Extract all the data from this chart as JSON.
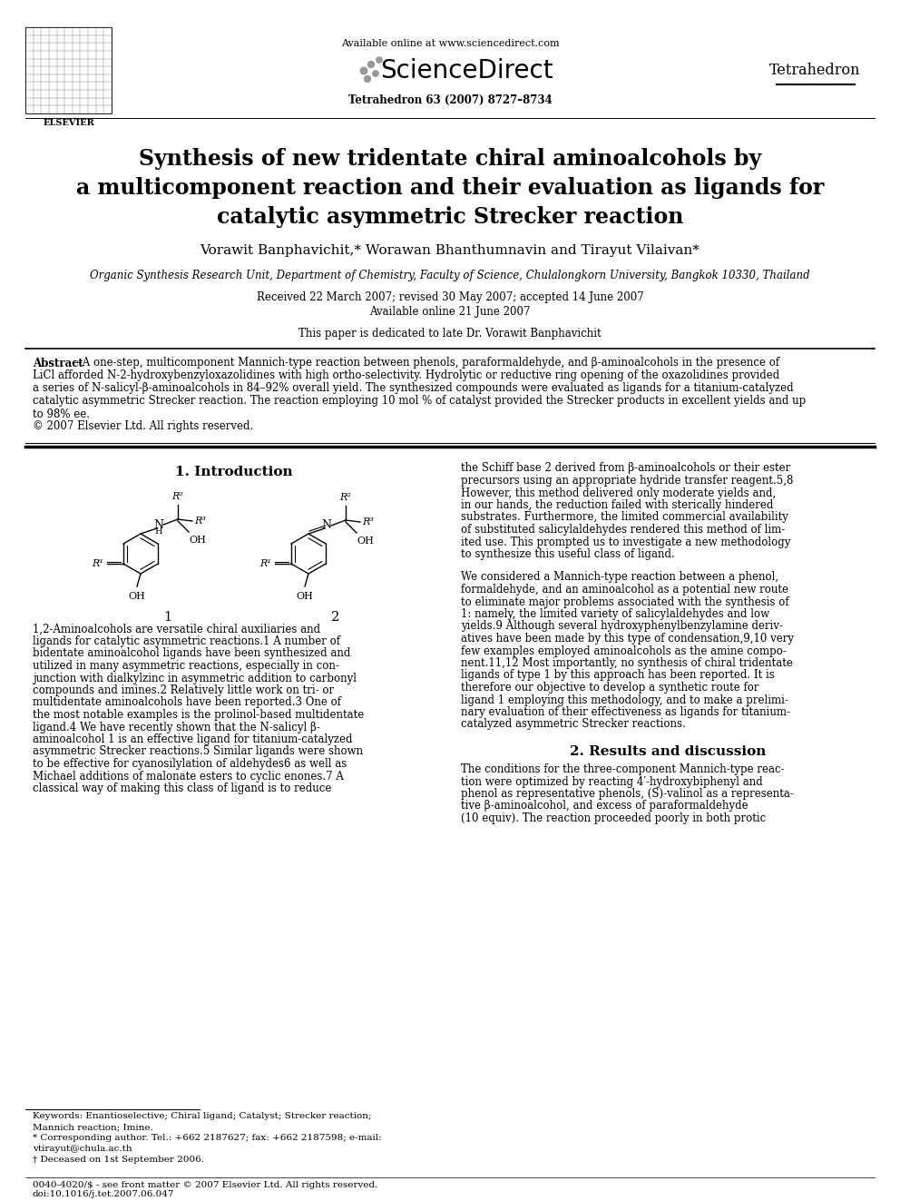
{
  "bg": "#ffffff",
  "header_available": "Available online at www.sciencedirect.com",
  "header_sciencedirect": "ScienceDirect",
  "header_journal": "Tetrahedron",
  "header_volume": "Tetrahedron 63 (2007) 8727–8734",
  "title_line1": "Synthesis of new tridentate chiral aminoalcohols by",
  "title_line2": "a multicomponent reaction and their evaluation as ligands for",
  "title_line3": "catalytic asymmetric Strecker reaction",
  "authors": "Vorawit Banphavichit,* Worawan Bhanthumnavin and Tirayut Vilaivan*",
  "affiliation": "Organic Synthesis Research Unit, Department of Chemistry, Faculty of Science, Chulalongkorn University, Bangkok 10330, Thailand",
  "date1": "Received 22 March 2007; revised 30 May 2007; accepted 14 June 2007",
  "date2": "Available online 21 June 2007",
  "dedication": "This paper is dedicated to late Dr. Vorawit Banphavichit",
  "abstract_label": "Abstract",
  "abstract_body": "—A one-step, multicomponent Mannich-type reaction between phenols, paraformaldehyde, and β-aminoalcohols in the presence of LiCl afforded N-2-hydroxybenzyloxazolidines with high ortho-selectivity. Hydrolytic or reductive ring opening of the oxazolidines provided a series of N-salicyl-β-aminoalcohols in 84–92% overall yield. The synthesized compounds were evaluated as ligands for a titanium-catalyzed catalytic asymmetric Strecker reaction. The reaction employing 10 mol % of catalyst provided the Strecker products in excellent yields and up to 98% ee.",
  "copyright": "© 2007 Elsevier Ltd. All rights reserved.",
  "sec1_title": "1. Introduction",
  "col1_text": "1,2-Aminoalcohols are versatile chiral auxiliaries and\nligands for catalytic asymmetric reactions.1 A number of\nbidentate aminoalcohol ligands have been synthesized and\nutilized in many asymmetric reactions, especially in con-\njunction with dialkylzinc in asymmetric addition to carbonyl\ncompounds and imines.2 Relatively little work on tri- or\nmultidentate aminoalcohols have been reported.3 One of\nthe most notable examples is the prolinol-based multidentate\nligand.4 We have recently shown that the N-salicyl β-\naminoalcohol 1 is an effective ligand for titanium-catalyzed\nasymmetric Strecker reactions.5 Similar ligands were shown\nto be effective for cyanosilylation of aldehydes6 as well as\nMichael additions of malonate esters to cyclic enones.7 A\nclassical way of making this class of ligand is to reduce",
  "col2_text_p1": "the Schiff base 2 derived from β-aminoalcohols or their ester\nprecursors using an appropriate hydride transfer reagent.5,8\nHowever, this method delivered only moderate yields and,\nin our hands, the reduction failed with sterically hindered\nsubstrates. Furthermore, the limited commercial availability\nof substituted salicylaldehydes rendered this method of lim-\nited use. This prompted us to investigate a new methodology\nto synthesize this useful class of ligand.",
  "col2_text_p2": "We considered a Mannich-type reaction between a phenol,\nformaldehyde, and an aminoalcohol as a potential new route\nto eliminate major problems associated with the synthesis of\n1: namely, the limited variety of salicylaldehydes and low\nyields.9 Although several hydroxyphenylbenzylamine deriv-\natives have been made by this type of condensation,9,10 very\nfew examples employed aminoalcohols as the amine compo-\nnent.11,12 Most importantly, no synthesis of chiral tridentate\nligands of type 1 by this approach has been reported. It is\ntherefore our objective to develop a synthetic route for\nligand 1 employing this methodology, and to make a prelimi-\nnary evaluation of their effectiveness as ligands for titanium-\ncatalyzed asymmetric Strecker reactions.",
  "sec2_title": "2. Results and discussion",
  "col2_sec2_text": "The conditions for the three-component Mannich-type reac-\ntion were optimized by reacting 4′-hydroxybiphenyl and\nphenol as representative phenols, (S)-valinol as a representa-\ntive β-aminoalcohol, and excess of paraformaldehyde\n(10 equiv). The reaction proceeded poorly in both protic",
  "fn_keywords": "Keywords: Enantioselective; Chiral ligand; Catalyst; Strecker reaction;\nMannich reaction; Imine.",
  "fn_star": "* Corresponding author. Tel.: +662 2187627; fax: +662 2187598; e-mail:\nvtirayut@chula.ac.th",
  "fn_dagger": "† Deceased on 1st September 2006.",
  "footer1": "0040-4020/$ - see front matter © 2007 Elsevier Ltd. All rights reserved.",
  "footer2": "doi:10.1016/j.tet.2007.06.047"
}
